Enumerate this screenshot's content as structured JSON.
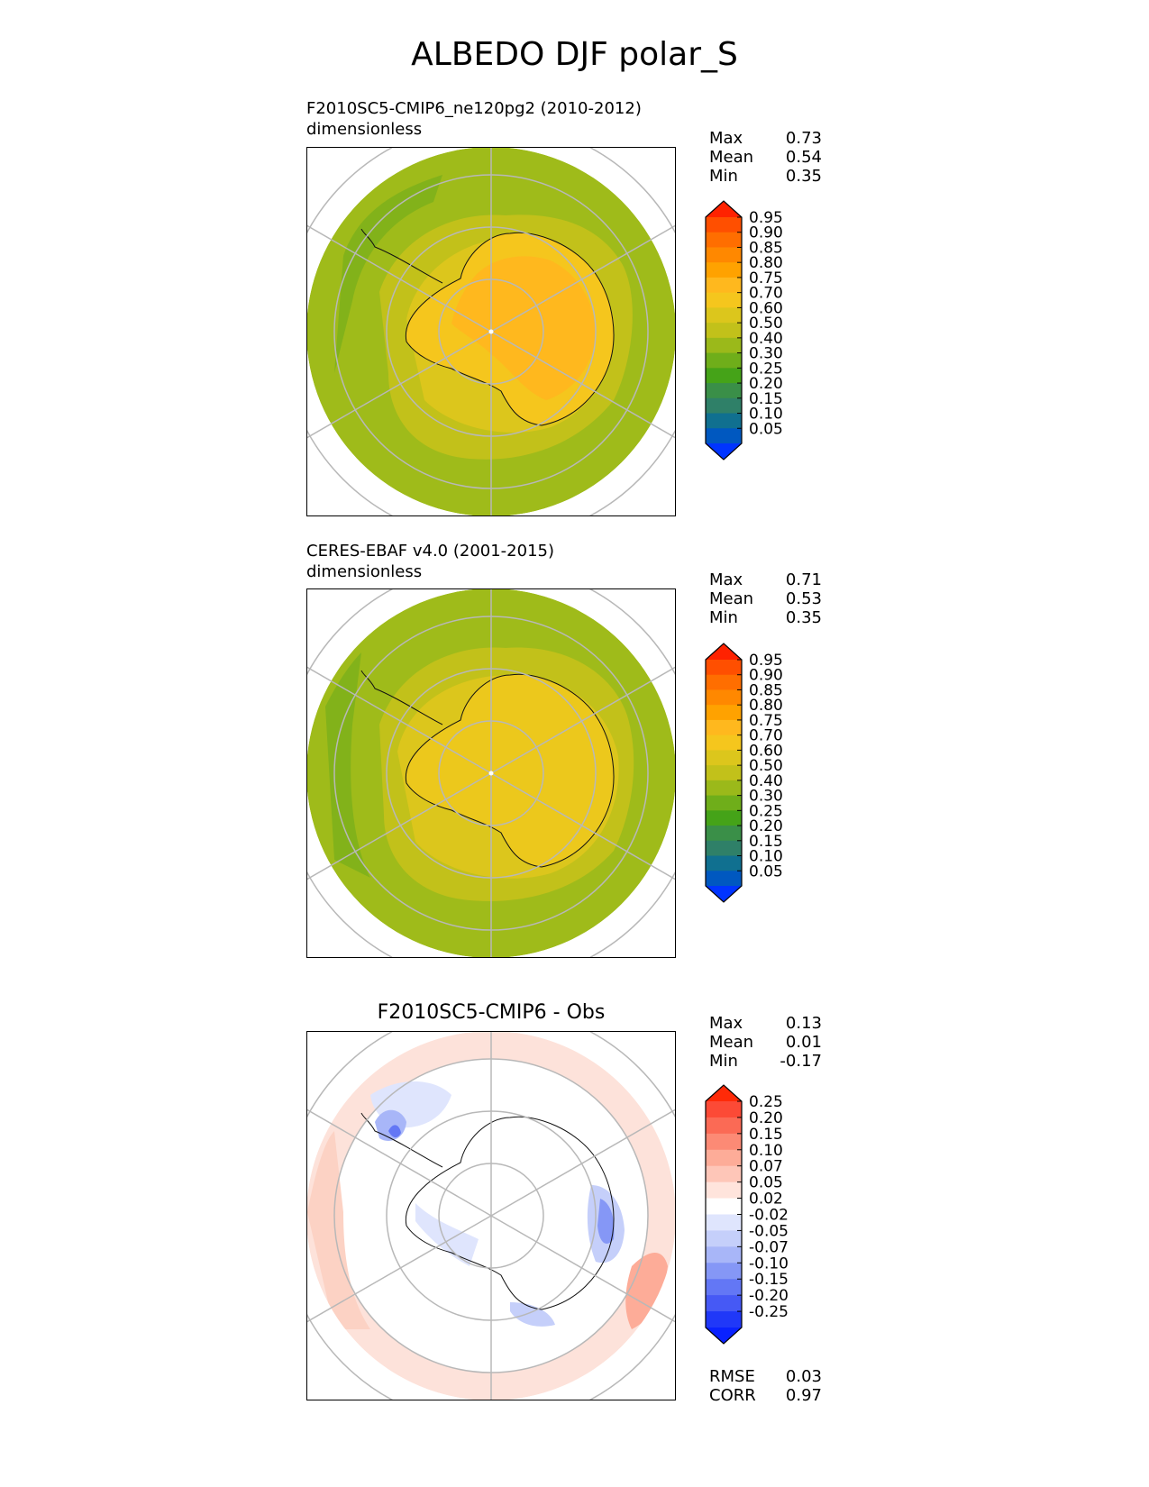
{
  "title": "ALBEDO DJF polar_S",
  "panels": [
    {
      "title_line1": "F2010SC5-CMIP6_ne120pg2 (2010-2012)",
      "title_line2": "dimensionless",
      "stats": [
        {
          "label": "Max",
          "value": "0.73"
        },
        {
          "label": "Mean",
          "value": "0.54"
        },
        {
          "label": "Min",
          "value": "0.35"
        }
      ],
      "colorbar": {
        "ticks": [
          "0.95",
          "0.90",
          "0.85",
          "0.80",
          "0.75",
          "0.70",
          "0.60",
          "0.50",
          "0.40",
          "0.30",
          "0.25",
          "0.20",
          "0.15",
          "0.10",
          "0.05"
        ],
        "colors": [
          "#ff2200",
          "#ff4f00",
          "#ff6e00",
          "#ff8800",
          "#ffa200",
          "#ffb81e",
          "#f5c61d",
          "#dcc61c",
          "#c2c11a",
          "#9bb91a",
          "#6fae1a",
          "#45a318",
          "#3a8f48",
          "#2f8068",
          "#107090",
          "#0058c0",
          "#0034ff"
        ]
      }
    },
    {
      "title_line1": "CERES-EBAF v4.0 (2001-2015)",
      "title_line2": "dimensionless",
      "stats": [
        {
          "label": "Max",
          "value": "0.71"
        },
        {
          "label": "Mean",
          "value": "0.53"
        },
        {
          "label": "Min",
          "value": "0.35"
        }
      ],
      "colorbar": {
        "ticks": [
          "0.95",
          "0.90",
          "0.85",
          "0.80",
          "0.75",
          "0.70",
          "0.60",
          "0.50",
          "0.40",
          "0.30",
          "0.25",
          "0.20",
          "0.15",
          "0.10",
          "0.05"
        ],
        "colors": [
          "#ff2200",
          "#ff4f00",
          "#ff6e00",
          "#ff8800",
          "#ffa200",
          "#ffb81e",
          "#f5c61d",
          "#dcc61c",
          "#c2c11a",
          "#9bb91a",
          "#6fae1a",
          "#45a318",
          "#3a8f48",
          "#2f8068",
          "#107090",
          "#0058c0",
          "#0034ff"
        ]
      }
    },
    {
      "title": "F2010SC5-CMIP6 - Obs",
      "stats": [
        {
          "label": "Max",
          "value": "0.13"
        },
        {
          "label": "Mean",
          "value": "0.01"
        },
        {
          "label": "Min",
          "value": "-0.17"
        }
      ],
      "colorbar": {
        "ticks": [
          "0.25",
          "0.20",
          "0.15",
          "0.10",
          "0.07",
          "0.05",
          "0.02",
          "-0.02",
          "-0.05",
          "-0.07",
          "-0.10",
          "-0.15",
          "-0.20",
          "-0.25"
        ],
        "colors": [
          "#ff2a08",
          "#fc4a36",
          "#fb6a55",
          "#fc8a75",
          "#fdac98",
          "#fec6b8",
          "#ffe4dc",
          "#ffffff",
          "#dfe5fd",
          "#c5cffa",
          "#a8b6f8",
          "#8597f6",
          "#6377f5",
          "#4659f5",
          "#2038f8",
          "#0a22ff"
        ]
      },
      "bottom_stats": [
        {
          "label": "RMSE",
          "value": "0.03"
        },
        {
          "label": "CORR",
          "value": "0.97"
        }
      ]
    }
  ],
  "chart_data": [
    {
      "type": "heatmap",
      "title": "F2010SC5-CMIP6_ne120pg2 (2010-2012)",
      "units": "dimensionless",
      "projection": "south polar stereographic",
      "levels": [
        0.05,
        0.1,
        0.15,
        0.2,
        0.25,
        0.3,
        0.4,
        0.5,
        0.6,
        0.7,
        0.75,
        0.8,
        0.85,
        0.9,
        0.95
      ],
      "max": 0.73,
      "mean": 0.54,
      "min": 0.35,
      "fields": {
        "ocean_outer": 0.45,
        "ocean_mid": 0.55,
        "coast_ring": 0.62,
        "continent": 0.7
      }
    },
    {
      "type": "heatmap",
      "title": "CERES-EBAF v4.0 (2001-2015)",
      "units": "dimensionless",
      "projection": "south polar stereographic",
      "levels": [
        0.05,
        0.1,
        0.15,
        0.2,
        0.25,
        0.3,
        0.4,
        0.5,
        0.6,
        0.7,
        0.75,
        0.8,
        0.85,
        0.9,
        0.95
      ],
      "max": 0.71,
      "mean": 0.53,
      "min": 0.35,
      "fields": {
        "ocean_outer": 0.47,
        "ocean_mid": 0.55,
        "coast_ring": 0.62,
        "continent": 0.66
      }
    },
    {
      "type": "heatmap",
      "title": "F2010SC5-CMIP6 - Obs",
      "projection": "south polar stereographic",
      "levels": [
        -0.25,
        -0.2,
        -0.15,
        -0.1,
        -0.07,
        -0.05,
        -0.02,
        0.02,
        0.05,
        0.07,
        0.1,
        0.15,
        0.2,
        0.25
      ],
      "max": 0.13,
      "mean": 0.01,
      "min": -0.17,
      "rmse": 0.03,
      "corr": 0.97
    }
  ]
}
